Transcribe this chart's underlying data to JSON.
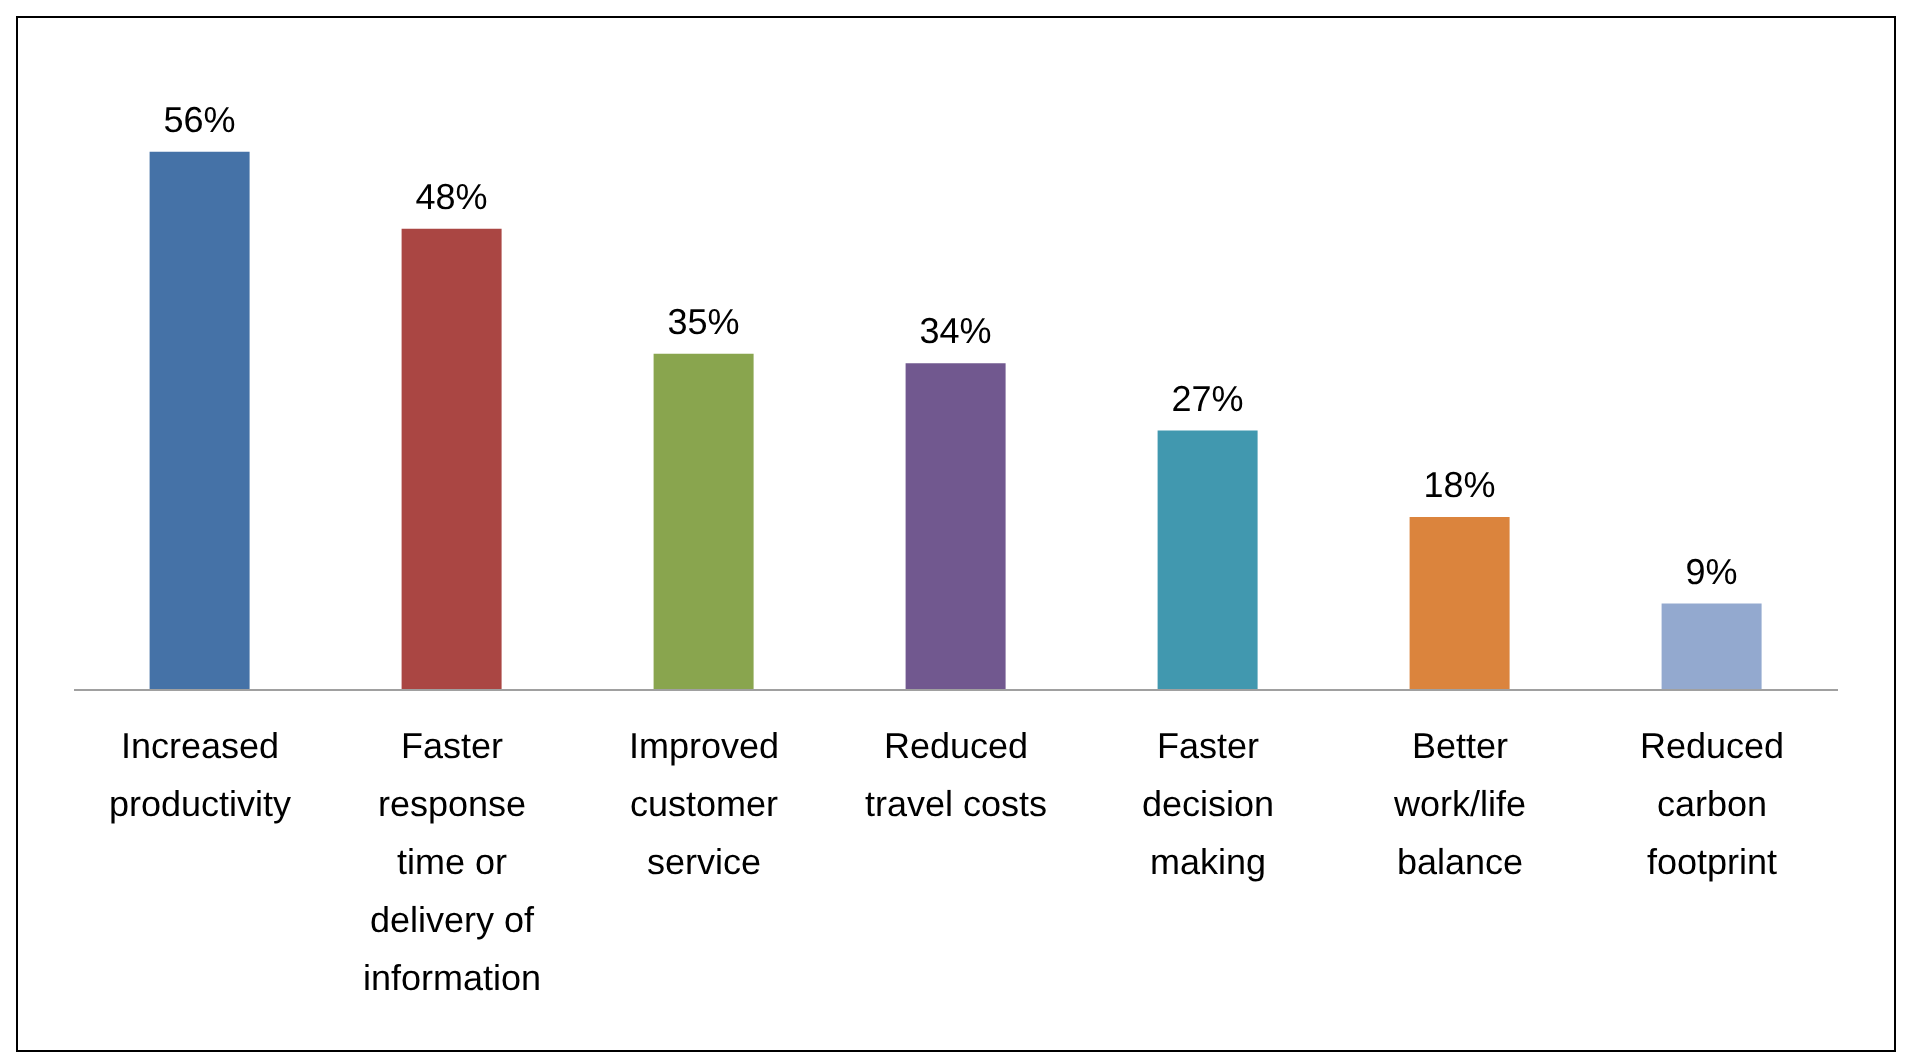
{
  "chart_data": {
    "type": "bar",
    "categories": [
      "Increased productivity",
      "Faster response time or delivery of information",
      "Improved customer service",
      "Reduced travel costs",
      "Faster decision making",
      "Better work/life balance",
      "Reduced carbon footprint"
    ],
    "values": [
      56,
      48,
      35,
      34,
      27,
      18,
      9
    ],
    "value_labels": [
      "56%",
      "48%",
      "35%",
      "34%",
      "27%",
      "18%",
      "9%"
    ],
    "colors": [
      "#4572a7",
      "#aa4643",
      "#89a54e",
      "#71588f",
      "#4198af",
      "#db843d",
      "#93a9cf"
    ],
    "grid": false,
    "legend": false
  }
}
